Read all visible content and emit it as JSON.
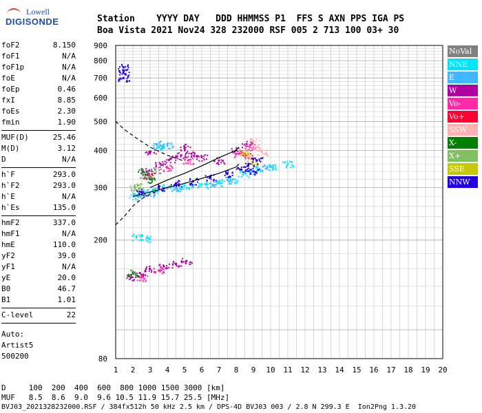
{
  "logo": {
    "line1": "Lowell",
    "line2": "DIGISONDE"
  },
  "header": {
    "line1": "Station    YYYY DAY   DDD HHMMSS P1  FFS S AXN PPS IGA PS",
    "line2": "Boa Vista 2021 Nov24 328 232000 RSF 005 2 713 100 03+ 30"
  },
  "params": {
    "group1": [
      [
        "foF2",
        "8.150"
      ],
      [
        "foF1",
        "N/A"
      ],
      [
        "foF1p",
        "N/A"
      ],
      [
        "foE",
        "N/A"
      ],
      [
        "foEp",
        "0.46"
      ],
      [
        "fxI",
        "8.85"
      ],
      [
        "foEs",
        "2.30"
      ],
      [
        "fmin",
        "1.90"
      ]
    ],
    "group2": [
      [
        "MUF(D)",
        "25.46"
      ],
      [
        "M(D)",
        "3.12"
      ],
      [
        "D",
        "N/A"
      ]
    ],
    "group3": [
      [
        "h`F",
        "293.0"
      ],
      [
        "h`F2",
        "293.0"
      ],
      [
        "h`E",
        "N/A"
      ],
      [
        "h`Es",
        "135.0"
      ]
    ],
    "group4": [
      [
        "hmF2",
        "337.0"
      ],
      [
        "hmF1",
        "N/A"
      ],
      [
        "hmE",
        "110.0"
      ],
      [
        "yF2",
        "39.0"
      ],
      [
        "yF1",
        "N/A"
      ],
      [
        "yE",
        "20.0"
      ],
      [
        "B0",
        "46.7"
      ],
      [
        "B1",
        "1.01"
      ]
    ],
    "group5": [
      [
        "C-level",
        "22"
      ]
    ],
    "auto": [
      "Auto:",
      "Artist5",
      "500200"
    ]
  },
  "footer": {
    "line1": "D     100  200  400  600  800 1000 1500 3000 [km]",
    "line2": "MUF   8.5  8.6  9.0  9.6 10.5 11.9 15.7 25.5 [MHz]",
    "line3": "BVJ03_2021328232000.RSF / 384fx512h 50 kHz 2.5 km / DPS-4D BVJ03 003 / 2.8 N 299.3 E  Ion2Png 1.3.20"
  },
  "legend": [
    {
      "label": "NoVal",
      "color": "#808080"
    },
    {
      "label": "NNE",
      "color": "#00e5ff"
    },
    {
      "label": "E",
      "color": "#40b8ff"
    },
    {
      "label": "W",
      "color": "#b000a0"
    },
    {
      "label": "Vo-",
      "color": "#ff2aa8"
    },
    {
      "label": "Vo+",
      "color": "#ff0030"
    },
    {
      "label": "SSW",
      "color": "#ffb0b0"
    },
    {
      "label": "X-",
      "color": "#008000"
    },
    {
      "label": "X+",
      "color": "#80c060"
    },
    {
      "label": "SSE",
      "color": "#c8c800"
    },
    {
      "label": "NNW",
      "color": "#2000e0"
    }
  ],
  "chart_data": {
    "type": "scatter",
    "xlabel": "",
    "ylabel": "",
    "xlim": [
      1,
      20
    ],
    "ylim": [
      80,
      900
    ],
    "y_scale": "log",
    "xticks": [
      "1",
      "2",
      "3",
      "4",
      "5",
      "6",
      "7",
      "8",
      "9",
      "10",
      "11",
      "12",
      "13",
      "14",
      "15",
      "16",
      "17",
      "18",
      "19",
      "20"
    ],
    "yticks": [
      "80",
      "200",
      "300",
      "400",
      "500",
      "600",
      "700",
      "800",
      "900"
    ],
    "grid": true,
    "series": [
      {
        "name": "NNE",
        "color": "#00e5ff",
        "points": [
          [
            2.1,
            285
          ],
          [
            2.6,
            290
          ],
          [
            3.2,
            295
          ],
          [
            4.0,
            300
          ],
          [
            5.0,
            305
          ],
          [
            6.0,
            308
          ],
          [
            7.0,
            312
          ],
          [
            7.8,
            320
          ],
          [
            8.5,
            335
          ],
          [
            9.2,
            350
          ],
          [
            10.0,
            352
          ],
          [
            11.0,
            360
          ],
          [
            3.5,
            410
          ],
          [
            2.2,
            205
          ],
          [
            2.8,
            203
          ]
        ]
      },
      {
        "name": "E",
        "color": "#40b8ff",
        "points": [
          [
            2.3,
            280
          ],
          [
            3.0,
            288
          ],
          [
            4.5,
            298
          ],
          [
            5.5,
            303
          ],
          [
            6.5,
            310
          ],
          [
            7.5,
            318
          ],
          [
            8.8,
            340
          ],
          [
            9.8,
            350
          ],
          [
            3.4,
            420
          ],
          [
            4.0,
            415
          ]
        ]
      },
      {
        "name": "W",
        "color": "#b000a0",
        "points": [
          [
            1.9,
            150
          ],
          [
            2.4,
            155
          ],
          [
            3.0,
            160
          ],
          [
            3.8,
            163
          ],
          [
            4.5,
            166
          ],
          [
            5.1,
            170
          ],
          [
            2.8,
            340
          ],
          [
            3.6,
            360
          ],
          [
            4.2,
            375
          ],
          [
            4.8,
            385
          ],
          [
            5.4,
            390
          ],
          [
            6.0,
            380
          ],
          [
            7.0,
            370
          ],
          [
            8.0,
            400
          ],
          [
            8.6,
            420
          ],
          [
            3.0,
            395
          ],
          [
            5.0,
            410
          ]
        ]
      },
      {
        "name": "Vo-",
        "color": "#ff2aa8",
        "points": [
          [
            2.5,
            150
          ],
          [
            3.5,
            158
          ],
          [
            4.0,
            350
          ],
          [
            5.2,
            370
          ],
          [
            8.2,
            390
          ],
          [
            8.8,
            410
          ]
        ]
      },
      {
        "name": "Vo+",
        "color": "#ff0030",
        "points": [
          [
            2.9,
            330
          ],
          [
            8.6,
            385
          ]
        ]
      },
      {
        "name": "SSW",
        "color": "#ffb0b0",
        "points": [
          [
            8.8,
            380
          ],
          [
            9.2,
            410
          ],
          [
            9.5,
            395
          ],
          [
            9.0,
            430
          ]
        ]
      },
      {
        "name": "X-",
        "color": "#008000",
        "points": [
          [
            2.0,
            155
          ],
          [
            2.6,
            340
          ],
          [
            3.0,
            320
          ]
        ]
      },
      {
        "name": "X+",
        "color": "#80c060",
        "points": [
          [
            2.3,
            305
          ],
          [
            2.1,
            300
          ]
        ]
      },
      {
        "name": "SSE",
        "color": "#c8c800",
        "points": [
          [
            8.4,
            395
          ],
          [
            8.9,
            360
          ]
        ]
      },
      {
        "name": "NNW",
        "color": "#2000e0",
        "points": [
          [
            1.45,
            700
          ],
          [
            1.45,
            730
          ],
          [
            1.45,
            760
          ],
          [
            2.5,
            290
          ],
          [
            3.5,
            300
          ],
          [
            4.5,
            310
          ],
          [
            5.5,
            315
          ],
          [
            6.5,
            325
          ],
          [
            7.5,
            335
          ],
          [
            8.3,
            345
          ],
          [
            8.7,
            355
          ],
          [
            9.2,
            370
          ],
          [
            9.0,
            340
          ]
        ]
      },
      {
        "name": "NoVal",
        "color": "#808080",
        "points": [
          [
            2.6,
            330
          ],
          [
            3.3,
            345
          ]
        ]
      }
    ],
    "curves": [
      {
        "name": "profile",
        "style": "solid",
        "points": [
          [
            2.0,
            280
          ],
          [
            3.0,
            290
          ],
          [
            4.0,
            300
          ],
          [
            5.0,
            310
          ],
          [
            6.0,
            322
          ],
          [
            7.0,
            335
          ],
          [
            8.0,
            352
          ],
          [
            8.15,
            360
          ]
        ]
      },
      {
        "name": "profile-upper",
        "style": "solid",
        "points": [
          [
            3.0,
            300
          ],
          [
            4.0,
            318
          ],
          [
            5.0,
            335
          ],
          [
            6.0,
            355
          ],
          [
            7.0,
            378
          ],
          [
            8.0,
            400
          ],
          [
            8.15,
            410
          ]
        ]
      },
      {
        "name": "topside",
        "style": "dashed",
        "points": [
          [
            1.0,
            500
          ],
          [
            1.5,
            470
          ],
          [
            2.2,
            440
          ],
          [
            3.0,
            410
          ],
          [
            4.0,
            385
          ],
          [
            5.0,
            368
          ]
        ]
      },
      {
        "name": "bottomside",
        "style": "dashed",
        "points": [
          [
            1.0,
            225
          ],
          [
            1.5,
            240
          ],
          [
            2.0,
            260
          ],
          [
            2.5,
            275
          ],
          [
            3.0,
            285
          ],
          [
            3.5,
            293
          ]
        ]
      }
    ]
  }
}
